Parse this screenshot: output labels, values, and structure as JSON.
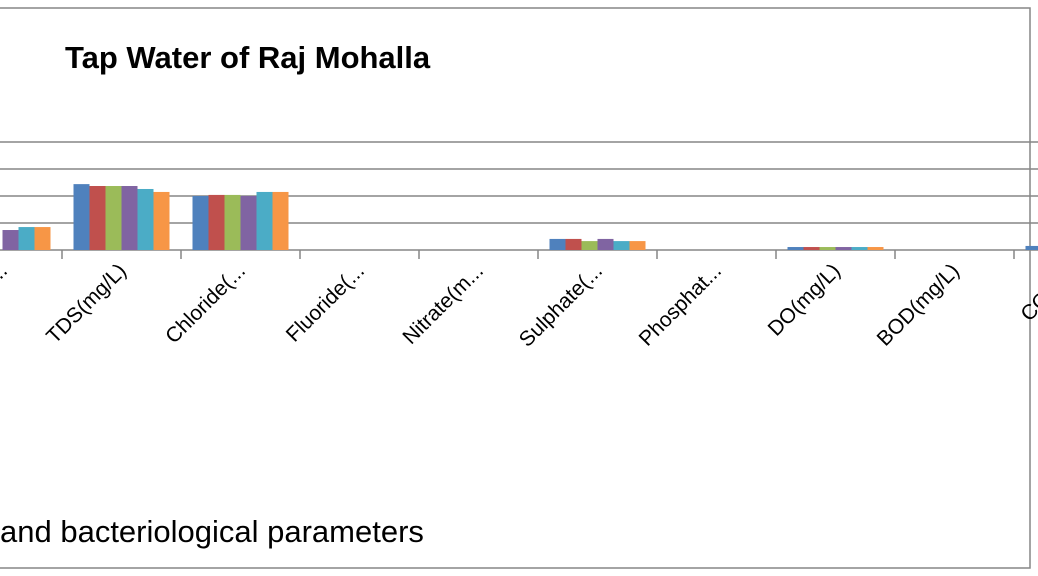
{
  "chart_data": {
    "type": "bar",
    "title": "Tap Water of Raj Mohalla",
    "x_label": "and bacteriological parameters",
    "categories": [
      "...",
      "TDS(mg/L)",
      "Chloride(...",
      "Fluoride(...",
      "Nitrate(m...",
      "Sulphate(...",
      "Phosphat...",
      "DO(mg/L)",
      "BOD(mg/L)",
      "COD(m"
    ],
    "series": [
      {
        "color": "#4f81bd",
        "values": [
          null,
          2.44,
          2.0,
          0,
          0,
          0.41,
          0,
          0.11,
          0,
          0.15
        ]
      },
      {
        "color": "#c0504d",
        "values": [
          null,
          2.37,
          2.04,
          0,
          0,
          0.41,
          0,
          0.11,
          0,
          null
        ]
      },
      {
        "color": "#9bbb59",
        "values": [
          null,
          2.37,
          2.04,
          0,
          0,
          0.33,
          0,
          0.11,
          0,
          null
        ]
      },
      {
        "color": "#8064a2",
        "values": [
          0.74,
          2.37,
          2.0,
          0,
          0,
          0.41,
          0,
          0.11,
          0,
          null
        ]
      },
      {
        "color": "#4bacc6",
        "values": [
          0.85,
          2.26,
          2.15,
          0,
          0,
          0.33,
          0,
          0.11,
          0,
          null
        ]
      },
      {
        "color": "#f79646",
        "values": [
          0.85,
          2.15,
          2.15,
          0,
          0,
          0.33,
          0,
          0.11,
          0,
          null
        ]
      }
    ],
    "ylim": [
      0,
      4
    ],
    "yticks": [
      0,
      1,
      2,
      3,
      4
    ],
    "grid": true
  }
}
